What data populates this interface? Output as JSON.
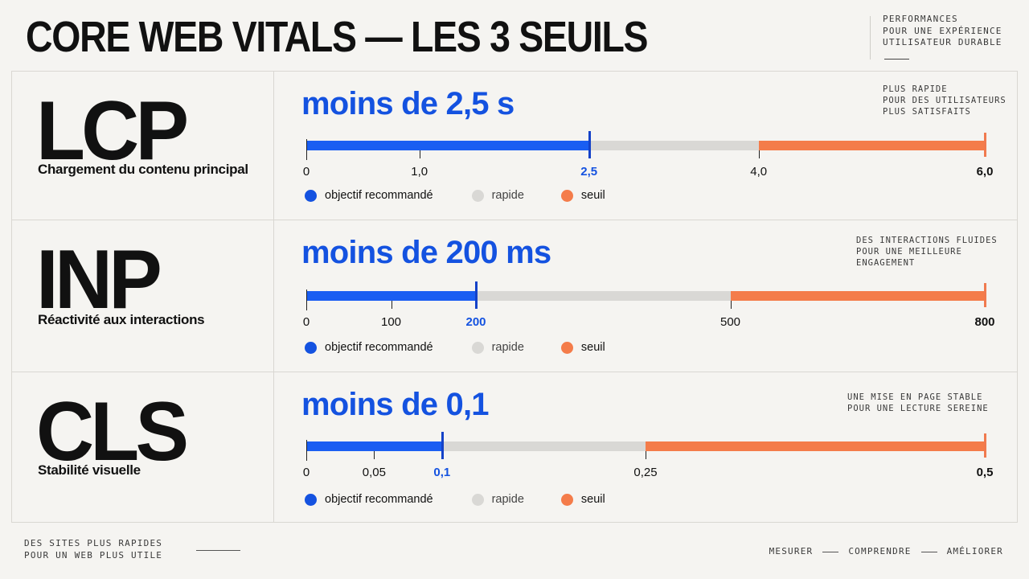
{
  "header": {
    "title": "CORE WEB VITALS — LES 3 SEUILS",
    "tagline": [
      "PERFORMANCES",
      "POUR UNE EXPÉRIENCE",
      "UTILISATEUR DURABLE"
    ]
  },
  "colors": {
    "accent_blue": "#1452e0",
    "bar_blue": "#1a5ef2",
    "bar_grey": "#d9d8d5",
    "bar_orange": "#f47c4a"
  },
  "legend": {
    "goal": "objectif recommandé",
    "fast": "rapide",
    "threshold": "seuil"
  },
  "metrics": [
    {
      "abbr": "LCP",
      "name": "Chargement du contenu principal",
      "goal": "moins de 2,5 s",
      "note": [
        "PLUS RAPIDE",
        "POUR DES UTILISATEURS",
        "PLUS SATISFAITS"
      ],
      "scale_max": 6.0,
      "goal_value": 2.5,
      "fast_until": 4.0,
      "ticks": [
        {
          "value": 0,
          "label": "0"
        },
        {
          "value": 1.0,
          "label": "1,0"
        },
        {
          "value": 2.5,
          "label": "2,5"
        },
        {
          "value": 4.0,
          "label": "4,0"
        },
        {
          "value": 6.0,
          "label": "6,0"
        }
      ]
    },
    {
      "abbr": "INP",
      "name": "Réactivité aux interactions",
      "goal": "moins de 200 ms",
      "note": [
        "DES INTERACTIONS FLUIDES",
        "POUR UNE MEILLEURE",
        "ENGAGEMENT"
      ],
      "scale_max": 800,
      "goal_value": 200,
      "fast_until": 500,
      "ticks": [
        {
          "value": 0,
          "label": "0"
        },
        {
          "value": 100,
          "label": "100"
        },
        {
          "value": 200,
          "label": "200"
        },
        {
          "value": 500,
          "label": "500"
        },
        {
          "value": 800,
          "label": "800"
        }
      ]
    },
    {
      "abbr": "CLS",
      "name": "Stabilité visuelle",
      "goal": "moins de 0,1",
      "note": [
        "UNE MISE EN PAGE STABLE",
        "POUR UNE LECTURE SEREINE"
      ],
      "scale_max": 0.5,
      "goal_value": 0.1,
      "fast_until": 0.25,
      "ticks": [
        {
          "value": 0,
          "label": "0"
        },
        {
          "value": 0.05,
          "label": "0,05"
        },
        {
          "value": 0.1,
          "label": "0,1"
        },
        {
          "value": 0.25,
          "label": "0,25"
        },
        {
          "value": 0.5,
          "label": "0,5"
        }
      ]
    }
  ],
  "footer": {
    "left": [
      "DES SITES PLUS RAPIDES",
      "POUR UN WEB PLUS UTILE"
    ],
    "steps": [
      "MESURER",
      "COMPRENDRE",
      "AMÉLIORER"
    ]
  }
}
